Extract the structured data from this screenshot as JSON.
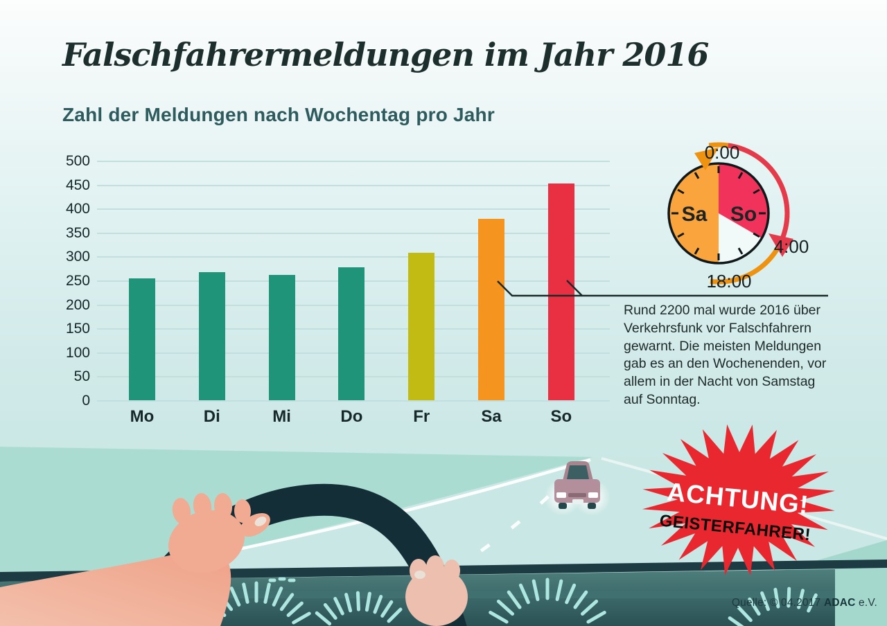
{
  "poster": {
    "title": "Falschfahrermeldungen im Jahr 2016",
    "subtitle": "Zahl der Meldungen nach Wochentag pro Jahr"
  },
  "chart_data": {
    "type": "bar",
    "title": "Zahl der Meldungen nach Wochentag pro Jahr",
    "categories": [
      "Mo",
      "Di",
      "Mi",
      "Do",
      "Fr",
      "Sa",
      "So"
    ],
    "values": [
      255,
      268,
      262,
      278,
      308,
      378,
      452
    ],
    "bar_colors": [
      "#1f9478",
      "#1f9478",
      "#1f9478",
      "#1f9478",
      "#c1bb14",
      "#f69420",
      "#e93043"
    ],
    "xlabel": "",
    "ylabel": "",
    "ylim": [
      0,
      500
    ],
    "yticks": [
      0,
      50,
      100,
      150,
      200,
      250,
      300,
      350,
      400,
      450,
      500
    ],
    "grid": "horizontal",
    "legend": "none"
  },
  "clock": {
    "label_sa": "Sa",
    "label_so": "So",
    "time_top": "0:00",
    "time_right": "4:00",
    "time_bottom": "18:00",
    "color_sa": "#f9a43c",
    "color_so": "#f1335b",
    "arrow_orange": "#ee920f",
    "arrow_red": "#e53a4c"
  },
  "annotation": {
    "text": "Rund 2200 mal wurde 2016 über Verkehrsfunk vor Falschfahrern gewarnt. Die meisten Meldungen gab es an den Wochenenden, vor allem in der Nacht von Samstag auf Sonntag."
  },
  "warning_badge": {
    "line1": "ACHTUNG!",
    "line2": "GEISTERFAHRER!",
    "color": "#e8272f"
  },
  "source": {
    "prefix": "Quelle: © 04.2017 ",
    "brand": "ADAC",
    "suffix": " e.V."
  }
}
